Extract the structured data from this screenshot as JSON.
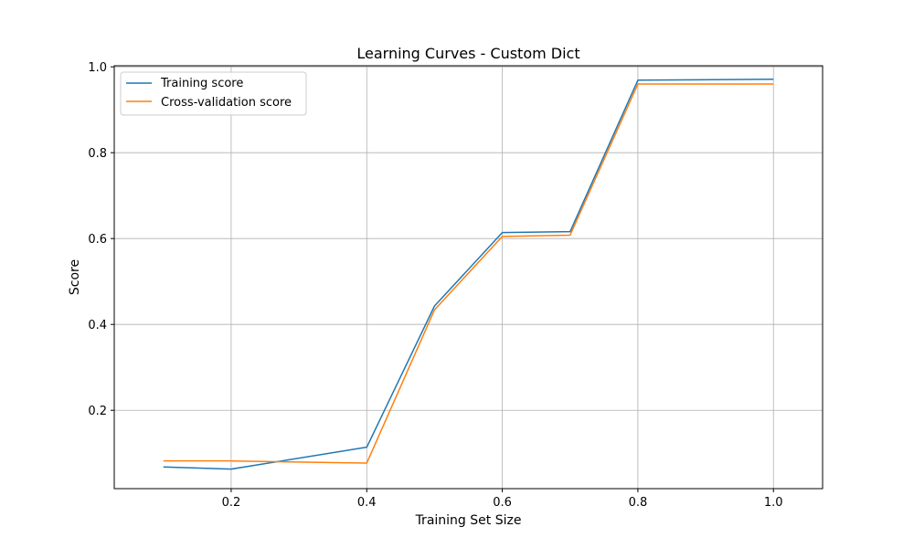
{
  "chart_data": {
    "type": "line",
    "title": "Learning Curves - Custom Dict",
    "xlabel": "Training Set Size",
    "ylabel": "Score",
    "xlim": [
      0.0275,
      1.0725
    ],
    "ylim": [
      0.0175,
      1.0025
    ],
    "xticks": [
      0.2,
      0.4,
      0.6,
      0.8,
      1.0
    ],
    "xtick_labels": [
      "0.2",
      "0.4",
      "0.6",
      "0.8",
      "1.0"
    ],
    "yticks": [
      0.2,
      0.4,
      0.6,
      0.8,
      1.0
    ],
    "ytick_labels": [
      "0.2",
      "0.4",
      "0.6",
      "0.8",
      "1.0"
    ],
    "grid": true,
    "legend_position": "upper-left",
    "x": [
      0.1,
      0.2,
      0.4,
      0.5,
      0.6,
      0.7,
      0.8,
      1.0
    ],
    "series": [
      {
        "name": "Training score",
        "color": "#1f77b4",
        "values": [
          0.068,
          0.063,
          0.114,
          0.443,
          0.614,
          0.616,
          0.969,
          0.971
        ]
      },
      {
        "name": "Cross-validation score",
        "color": "#ff7f0e",
        "values": [
          0.082,
          0.082,
          0.077,
          0.434,
          0.605,
          0.608,
          0.96,
          0.96
        ]
      }
    ]
  }
}
